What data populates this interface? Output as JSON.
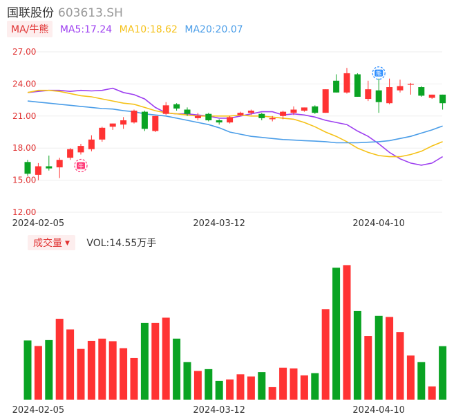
{
  "header": {
    "stock_name": "国联股份",
    "stock_code": "603613.SH"
  },
  "indicator_row": {
    "ma_type": "MA/牛熊",
    "ma5": "MA5:17.24",
    "ma10": "MA10:18.62",
    "ma20": "MA20:20.07"
  },
  "volume_row": {
    "label": "成交量",
    "value": "VOL:14.55万手"
  },
  "colors": {
    "up": "#ff3333",
    "down": "#0aa323",
    "ma5": "#9d3ff0",
    "ma10": "#f5c117",
    "ma20": "#4a9de8",
    "grid": "#eeeeee",
    "axis_label": "#e03030",
    "date_label": "#333333"
  },
  "chart_data": [
    {
      "type": "candlestick",
      "y_ticks": [
        "27.00",
        "24.00",
        "21.00",
        "18.00",
        "15.00",
        "12.00"
      ],
      "ylim": [
        12,
        27
      ],
      "x_tick_labels": [
        {
          "index": 1,
          "label": "2024-02-05"
        },
        {
          "index": 18,
          "label": "2024-03-12"
        },
        {
          "index": 33,
          "label": "2024-04-10"
        }
      ],
      "candles": [
        {
          "o": 16.7,
          "h": 16.9,
          "l": 15.4,
          "c": 15.6
        },
        {
          "o": 15.5,
          "h": 16.6,
          "l": 15.0,
          "c": 16.3
        },
        {
          "o": 16.3,
          "h": 17.3,
          "l": 15.9,
          "c": 16.1
        },
        {
          "o": 16.2,
          "h": 17.1,
          "l": 15.2,
          "c": 16.9
        },
        {
          "o": 17.1,
          "h": 18.0,
          "l": 16.9,
          "c": 17.9
        },
        {
          "o": 17.6,
          "h": 18.4,
          "l": 17.4,
          "c": 18.2
        },
        {
          "o": 17.9,
          "h": 19.2,
          "l": 17.7,
          "c": 18.8
        },
        {
          "o": 18.8,
          "h": 20.0,
          "l": 18.6,
          "c": 19.9
        },
        {
          "o": 20.0,
          "h": 20.3,
          "l": 19.7,
          "c": 20.3
        },
        {
          "o": 20.2,
          "h": 20.9,
          "l": 19.8,
          "c": 20.6
        },
        {
          "o": 20.4,
          "h": 21.6,
          "l": 20.3,
          "c": 21.5
        },
        {
          "o": 21.4,
          "h": 21.5,
          "l": 19.6,
          "c": 19.8
        },
        {
          "o": 19.6,
          "h": 21.0,
          "l": 19.5,
          "c": 21.0
        },
        {
          "o": 21.2,
          "h": 22.3,
          "l": 21.1,
          "c": 22.0
        },
        {
          "o": 22.1,
          "h": 22.2,
          "l": 21.5,
          "c": 21.7
        },
        {
          "o": 21.6,
          "h": 21.8,
          "l": 21.0,
          "c": 21.2
        },
        {
          "o": 20.8,
          "h": 21.3,
          "l": 20.6,
          "c": 21.0
        },
        {
          "o": 21.2,
          "h": 21.3,
          "l": 20.5,
          "c": 20.6
        },
        {
          "o": 20.6,
          "h": 20.7,
          "l": 20.2,
          "c": 20.4
        },
        {
          "o": 20.4,
          "h": 21.0,
          "l": 20.3,
          "c": 20.9
        },
        {
          "o": 21.1,
          "h": 21.4,
          "l": 21.0,
          "c": 21.3
        },
        {
          "o": 21.3,
          "h": 21.6,
          "l": 21.1,
          "c": 21.5
        },
        {
          "o": 21.2,
          "h": 21.3,
          "l": 20.6,
          "c": 20.8
        },
        {
          "o": 20.7,
          "h": 21.0,
          "l": 20.5,
          "c": 20.8
        },
        {
          "o": 21.0,
          "h": 21.5,
          "l": 20.7,
          "c": 21.4
        },
        {
          "o": 21.3,
          "h": 21.9,
          "l": 21.1,
          "c": 21.6
        },
        {
          "o": 21.5,
          "h": 21.8,
          "l": 21.4,
          "c": 21.8
        },
        {
          "o": 21.9,
          "h": 22.0,
          "l": 21.2,
          "c": 21.3
        },
        {
          "o": 21.3,
          "h": 23.5,
          "l": 21.3,
          "c": 23.5
        },
        {
          "o": 24.3,
          "h": 24.9,
          "l": 23.2,
          "c": 23.2
        },
        {
          "o": 23.2,
          "h": 25.5,
          "l": 23.1,
          "c": 25.0
        },
        {
          "o": 24.9,
          "h": 25.0,
          "l": 22.8,
          "c": 22.8
        },
        {
          "o": 22.6,
          "h": 24.3,
          "l": 22.4,
          "c": 23.5
        },
        {
          "o": 23.4,
          "h": 24.5,
          "l": 21.3,
          "c": 22.3
        },
        {
          "o": 22.2,
          "h": 24.5,
          "l": 22.1,
          "c": 23.7
        },
        {
          "o": 23.4,
          "h": 24.4,
          "l": 23.2,
          "c": 23.8
        },
        {
          "o": 24.0,
          "h": 24.1,
          "l": 23.0,
          "c": 24.0
        },
        {
          "o": 23.7,
          "h": 23.8,
          "l": 22.8,
          "c": 22.9
        },
        {
          "o": 22.7,
          "h": 23.0,
          "l": 22.6,
          "c": 23.0
        },
        {
          "o": 23.0,
          "h": 23.0,
          "l": 21.6,
          "c": 22.2
        }
      ],
      "ma5": [
        23.2,
        23.3,
        23.4,
        23.4,
        23.3,
        23.4,
        23.35,
        23.4,
        23.6,
        23.2,
        23.0,
        22.6,
        21.8,
        21.3,
        21.2,
        21.2,
        21.1,
        21.0,
        20.8,
        20.8,
        21.0,
        21.2,
        21.4,
        21.4,
        21.1,
        21.2,
        21.1,
        20.9,
        20.6,
        20.4,
        20.2,
        19.6,
        19.1,
        18.4,
        17.6,
        17.0,
        16.6,
        16.4,
        16.6,
        17.2
      ],
      "ma10": [
        23.2,
        23.4,
        23.4,
        23.3,
        23.1,
        22.9,
        22.8,
        22.6,
        22.4,
        22.2,
        22.1,
        21.8,
        21.5,
        21.3,
        21.2,
        21.1,
        21.0,
        21.0,
        21.0,
        21.0,
        21.1,
        21.0,
        21.0,
        20.9,
        20.8,
        20.7,
        20.4,
        20.0,
        19.5,
        19.1,
        18.6,
        18.0,
        17.6,
        17.3,
        17.2,
        17.2,
        17.4,
        17.7,
        18.2,
        18.6
      ],
      "ma20": [
        22.4,
        22.3,
        22.2,
        22.1,
        22.0,
        21.9,
        21.8,
        21.7,
        21.65,
        21.5,
        21.4,
        21.2,
        21.1,
        21.0,
        20.8,
        20.6,
        20.4,
        20.2,
        19.9,
        19.5,
        19.3,
        19.1,
        19.0,
        18.9,
        18.8,
        18.75,
        18.7,
        18.65,
        18.6,
        18.5,
        18.5,
        18.5,
        18.55,
        18.6,
        18.7,
        18.9,
        19.1,
        19.4,
        19.7,
        20.07
      ],
      "markers": [
        {
          "index": 5,
          "kind": "bull",
          "label": "牛"
        },
        {
          "index": 33,
          "kind": "bear",
          "label": "熊"
        }
      ]
    },
    {
      "type": "bar",
      "x_tick_labels": [
        {
          "index": 1,
          "label": "2024-02-05"
        },
        {
          "index": 18,
          "label": "2024-03-12"
        },
        {
          "index": 33,
          "label": "2024-04-10"
        }
      ],
      "volumes": [
        16.1,
        14.6,
        16.2,
        22.0,
        19.1,
        13.8,
        16.0,
        16.6,
        15.9,
        14.0,
        11.3,
        20.9,
        20.9,
        22.3,
        16.6,
        10.2,
        7.8,
        8.3,
        5.1,
        5.5,
        6.9,
        6.3,
        7.5,
        3.4,
        8.7,
        8.5,
        6.6,
        7.2,
        24.6,
        35.9,
        36.6,
        24.1,
        17.3,
        22.8,
        22.5,
        18.4,
        12.0,
        10.2,
        3.6,
        14.55
      ],
      "ylim": [
        0,
        38
      ]
    }
  ]
}
